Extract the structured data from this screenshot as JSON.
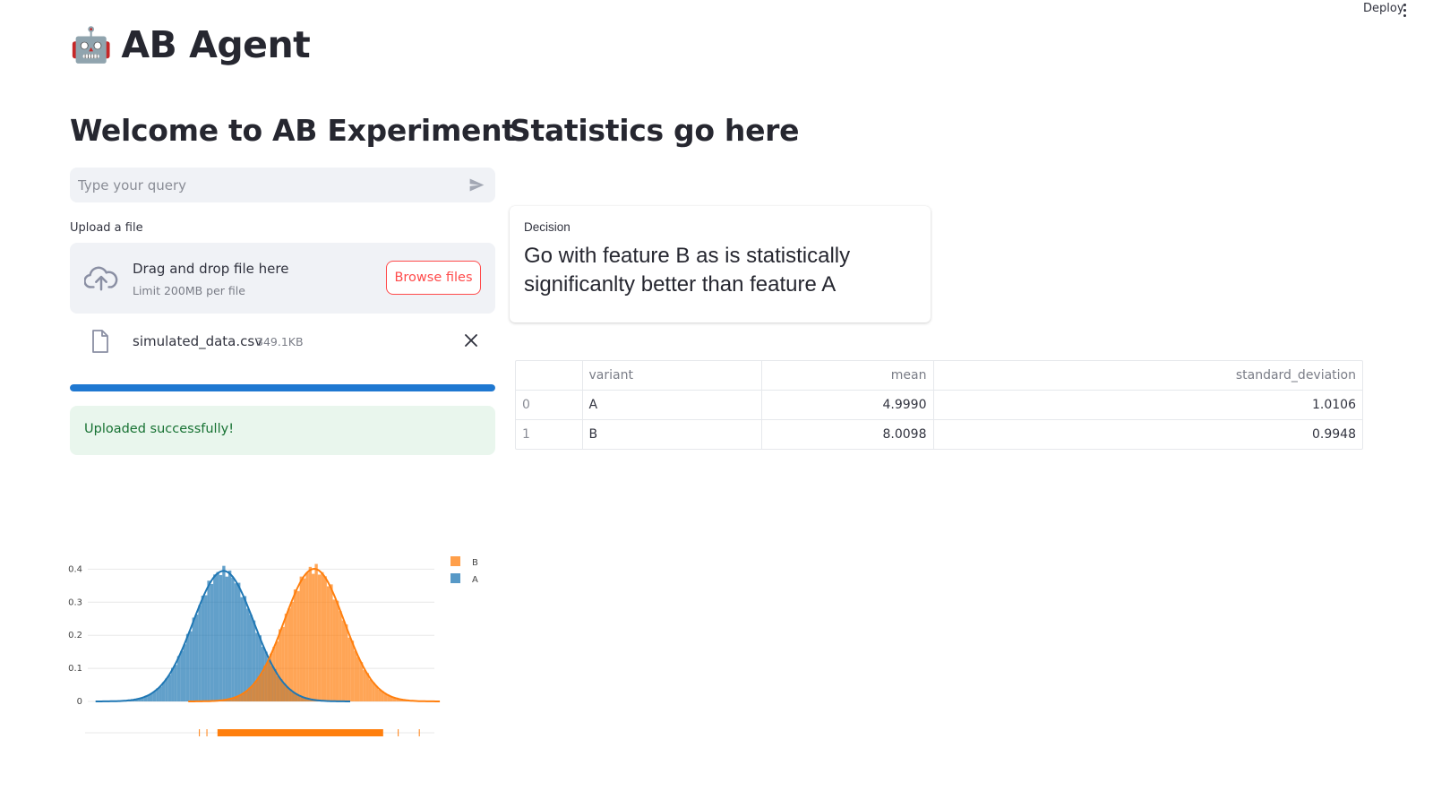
{
  "header": {
    "deploy_label": "Deploy",
    "app_icon": "robot-icon",
    "app_emoji": "🤖",
    "app_title": "AB Agent"
  },
  "left": {
    "heading": "Welcome to AB Experiment",
    "query": {
      "placeholder": "Type your query",
      "value": ""
    },
    "upload_label": "Upload a file",
    "dropzone": {
      "title": "Drag and drop file here",
      "subtitle": "Limit 200MB per file",
      "browse_label": "Browse files"
    },
    "uploaded_file": {
      "name": "simulated_data.csv",
      "size": "349.1KB"
    },
    "upload_progress": 1.0,
    "success_message": "Uploaded successfully!"
  },
  "right": {
    "heading": "Statistics go here",
    "metric": {
      "label": "Decision",
      "value": "Go with feature B as is statistically significanlty better than feature A"
    },
    "table": {
      "columns": [
        "",
        "variant",
        "mean",
        "standard_deviation"
      ],
      "rows": [
        [
          "0",
          "A",
          "4.9990",
          "1.0106"
        ],
        [
          "1",
          "B",
          "8.0098",
          "0.9948"
        ]
      ]
    }
  },
  "colors": {
    "A": "#1f77b4",
    "B": "#ff7f0e",
    "accent": "#ff4b4b",
    "progress": "#1f78d1"
  },
  "chart_data": {
    "type": "area",
    "title": "",
    "xlabel": "",
    "ylabel": "",
    "yticks": [
      "0",
      "0.1",
      "0.2",
      "0.3",
      "0.4"
    ],
    "ylim": [
      0,
      0.42
    ],
    "xlim": [
      1,
      12
    ],
    "grid": true,
    "legend_position": "top-right",
    "series": [
      {
        "name": "B",
        "mean": 8.0098,
        "std": 0.9948,
        "peak_density": 0.4,
        "color": "#ff7f0e"
      },
      {
        "name": "A",
        "mean": 4.999,
        "std": 1.0106,
        "peak_density": 0.4,
        "color": "#1f77b4"
      }
    ],
    "rug": {
      "min": 4.2,
      "max": 11.5
    }
  }
}
